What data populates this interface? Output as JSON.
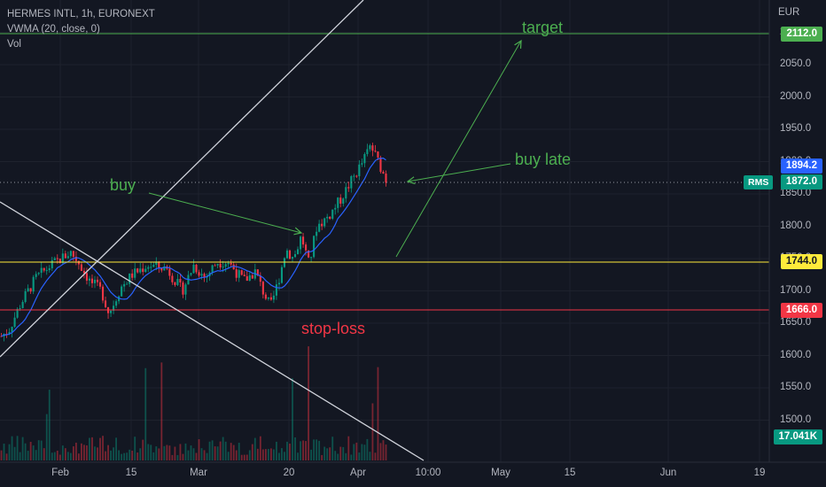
{
  "legend": {
    "symbol_line": "HERMES INTL, 1h, EURONEXT",
    "indicator": "VWMA (20, close, 0)",
    "volume": "Vol"
  },
  "currency": "EUR",
  "annotations": {
    "target": "target",
    "buy": "buy",
    "buy_late": "buy late",
    "stop_loss": "stop-loss"
  },
  "price_labels": {
    "target": "2112.0",
    "vwma": "1894.2",
    "last": "1872.0",
    "symbol_badge": "RMS",
    "entry": "1744.0",
    "stop": "1666.0",
    "volume": "17.041K"
  },
  "colors": {
    "background": "#131722",
    "target_line": "#4caf50",
    "entry_line": "#ffeb3b",
    "stop_line": "#f23645",
    "vwma_label": "#2962ff",
    "last_label": "#089981",
    "volume_label": "#089981",
    "candle_up": "#089981",
    "candle_down": "#f23645",
    "vwma_line": "#2962ff",
    "trend_lines": "#d1d4dc"
  },
  "chart_data": {
    "type": "line",
    "title": "HERMES INTL, 1h, EURONEXT",
    "ylabel": "EUR",
    "ylim": [
      1435,
      2150
    ],
    "y_ticks": [
      "1500.0",
      "1550.0",
      "1600.0",
      "1650.0",
      "1700.0",
      "1750.0",
      "1800.0",
      "1850.0",
      "1900.0",
      "1950.0",
      "2000.0",
      "2050.0",
      "2100.0"
    ],
    "x_ticks": [
      "Feb",
      "15",
      "Mar",
      "20",
      "Apr",
      "10:00",
      "May",
      "15",
      "Jun",
      "19"
    ],
    "levels": [
      {
        "name": "target",
        "value": 2112.0
      },
      {
        "name": "entry",
        "value": 1744.0
      },
      {
        "name": "stop-loss",
        "value": 1666.0
      }
    ],
    "price_path": [
      {
        "t": 0.0,
        "y": 1630
      },
      {
        "t": 0.02,
        "y": 1640
      },
      {
        "t": 0.05,
        "y": 1680
      },
      {
        "t": 0.09,
        "y": 1720
      },
      {
        "t": 0.13,
        "y": 1740
      },
      {
        "t": 0.18,
        "y": 1760
      },
      {
        "t": 0.2,
        "y": 1745
      },
      {
        "t": 0.23,
        "y": 1715
      },
      {
        "t": 0.26,
        "y": 1700
      },
      {
        "t": 0.28,
        "y": 1665
      },
      {
        "t": 0.31,
        "y": 1705
      },
      {
        "t": 0.34,
        "y": 1725
      },
      {
        "t": 0.38,
        "y": 1740
      },
      {
        "t": 0.43,
        "y": 1735
      },
      {
        "t": 0.47,
        "y": 1700
      },
      {
        "t": 0.5,
        "y": 1740
      },
      {
        "t": 0.53,
        "y": 1720
      },
      {
        "t": 0.56,
        "y": 1745
      },
      {
        "t": 0.59,
        "y": 1745
      },
      {
        "t": 0.63,
        "y": 1715
      },
      {
        "t": 0.66,
        "y": 1730
      },
      {
        "t": 0.68,
        "y": 1700
      },
      {
        "t": 0.7,
        "y": 1675
      },
      {
        "t": 0.72,
        "y": 1715
      },
      {
        "t": 0.74,
        "y": 1765
      },
      {
        "t": 0.76,
        "y": 1750
      },
      {
        "t": 0.78,
        "y": 1785
      },
      {
        "t": 0.8,
        "y": 1740
      },
      {
        "t": 0.82,
        "y": 1800
      },
      {
        "t": 0.85,
        "y": 1815
      },
      {
        "t": 0.88,
        "y": 1840
      },
      {
        "t": 0.91,
        "y": 1870
      },
      {
        "t": 0.94,
        "y": 1900
      },
      {
        "t": 0.96,
        "y": 1925
      },
      {
        "t": 0.98,
        "y": 1900
      },
      {
        "t": 1.0,
        "y": 1872
      }
    ]
  }
}
